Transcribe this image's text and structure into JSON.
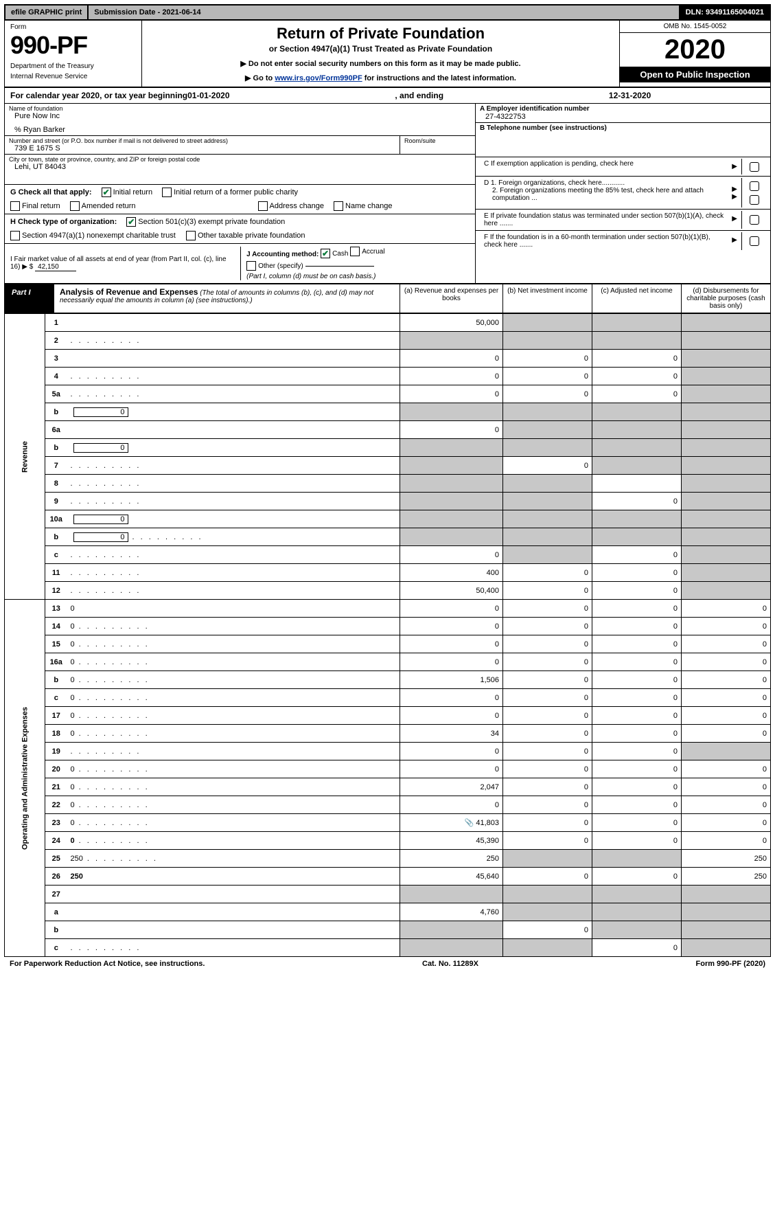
{
  "topbar": {
    "efile_label": "efile GRAPHIC print",
    "submission_label": "Submission Date - 2021-06-14",
    "dln_label": "DLN: 93491165004021"
  },
  "header": {
    "form_word": "Form",
    "form_number": "990-PF",
    "department": "Department of the Treasury",
    "irs": "Internal Revenue Service",
    "title": "Return of Private Foundation",
    "subtitle": "or Section 4947(a)(1) Trust Treated as Private Foundation",
    "instr1": "▶ Do not enter social security numbers on this form as it may be made public.",
    "instr2_prefix": "▶ Go to ",
    "instr2_link": "www.irs.gov/Form990PF",
    "instr2_suffix": " for instructions and the latest information.",
    "omb": "OMB No. 1545-0052",
    "year": "2020",
    "inspection": "Open to Public Inspection"
  },
  "calendar": {
    "prefix": "For calendar year 2020, or tax year beginning ",
    "begin": "01-01-2020",
    "mid": ", and ending ",
    "end": "12-31-2020"
  },
  "entity": {
    "name_label": "Name of foundation",
    "name": "Pure Now Inc",
    "care_of": "% Ryan Barker",
    "addr_label": "Number and street (or P.O. box number if mail is not delivered to street address)",
    "addr": "739 E 1675 S",
    "room_label": "Room/suite",
    "city_label": "City or town, state or province, country, and ZIP or foreign postal code",
    "city": "Lehi, UT  84043",
    "ein_label": "A Employer identification number",
    "ein": "27-4322753",
    "phone_label": "B Telephone number (see instructions)",
    "c_label": "C If exemption application is pending, check here",
    "d1_label": "D 1. Foreign organizations, check here............",
    "d2_label": "2. Foreign organizations meeting the 85% test, check here and attach computation ...",
    "e_label": "E  If private foundation status was terminated under section 507(b)(1)(A), check here .......",
    "f_label": "F  If the foundation is in a 60-month termination under section 507(b)(1)(B), check here ......."
  },
  "g": {
    "label": "G Check all that apply:",
    "initial": "Initial return",
    "initial_former": "Initial return of a former public charity",
    "final": "Final return",
    "amended": "Amended return",
    "addr_change": "Address change",
    "name_change": "Name change"
  },
  "h": {
    "label": "H Check type of organization:",
    "opt1": "Section 501(c)(3) exempt private foundation",
    "opt2": "Section 4947(a)(1) nonexempt charitable trust",
    "opt3": "Other taxable private foundation"
  },
  "i": {
    "label": "I Fair market value of all assets at end of year (from Part II, col. (c), line 16) ▶ $",
    "value": "42,150"
  },
  "j": {
    "label": "J Accounting method:",
    "cash": "Cash",
    "accrual": "Accrual",
    "other": "Other (specify)",
    "note": "(Part I, column (d) must be on cash basis.)"
  },
  "part1": {
    "tag": "Part I",
    "title": "Analysis of Revenue and Expenses",
    "note": "(The total of amounts in columns (b), (c), and (d) may not necessarily equal the amounts in column (a) (see instructions).)",
    "col_a": "(a)   Revenue and expenses per books",
    "col_b": "(b)  Net investment income",
    "col_c": "(c)  Adjusted net income",
    "col_d": "(d)  Disbursements for charitable purposes (cash basis only)"
  },
  "sections": {
    "revenue": "Revenue",
    "expenses": "Operating and Administrative Expenses"
  },
  "rows": [
    {
      "n": "1",
      "d": "",
      "a": "50,000",
      "b": "",
      "c": "",
      "greyB": true,
      "greyC": true,
      "greyD": true
    },
    {
      "n": "2",
      "d": "",
      "dots": true,
      "a": "",
      "b": "",
      "c": "",
      "greyA": true,
      "greyB": true,
      "greyC": true,
      "greyD": true
    },
    {
      "n": "3",
      "d": "",
      "a": "0",
      "b": "0",
      "c": "0",
      "greyD": true
    },
    {
      "n": "4",
      "d": "",
      "dots": true,
      "a": "0",
      "b": "0",
      "c": "0",
      "greyD": true
    },
    {
      "n": "5a",
      "d": "",
      "dots": true,
      "a": "0",
      "b": "0",
      "c": "0",
      "greyD": true
    },
    {
      "n": "b",
      "d": "",
      "inline": "0",
      "a": "",
      "b": "",
      "c": "",
      "greyA": true,
      "greyB": true,
      "greyC": true,
      "greyD": true
    },
    {
      "n": "6a",
      "d": "",
      "a": "0",
      "b": "",
      "c": "",
      "greyB": true,
      "greyC": true,
      "greyD": true
    },
    {
      "n": "b",
      "d": "",
      "inline": "0",
      "a": "",
      "b": "",
      "c": "",
      "greyA": true,
      "greyB": true,
      "greyC": true,
      "greyD": true
    },
    {
      "n": "7",
      "d": "",
      "dots": true,
      "a": "",
      "b": "0",
      "c": "",
      "greyA": true,
      "greyC": true,
      "greyD": true
    },
    {
      "n": "8",
      "d": "",
      "dots": true,
      "a": "",
      "b": "",
      "c": "",
      "greyA": true,
      "greyB": true,
      "greyD": true
    },
    {
      "n": "9",
      "d": "",
      "dots": true,
      "a": "",
      "b": "",
      "c": "0",
      "greyA": true,
      "greyB": true,
      "greyD": true
    },
    {
      "n": "10a",
      "d": "",
      "inline": "0",
      "a": "",
      "b": "",
      "c": "",
      "greyA": true,
      "greyB": true,
      "greyC": true,
      "greyD": true
    },
    {
      "n": "b",
      "d": "",
      "dots": true,
      "inline": "0",
      "a": "",
      "b": "",
      "c": "",
      "greyA": true,
      "greyB": true,
      "greyC": true,
      "greyD": true
    },
    {
      "n": "c",
      "d": "",
      "dots": true,
      "a": "0",
      "b": "",
      "c": "0",
      "greyB": true,
      "greyD": true
    },
    {
      "n": "11",
      "d": "",
      "dots": true,
      "a": "400",
      "b": "0",
      "c": "0",
      "greyD": true
    },
    {
      "n": "12",
      "d": "",
      "dots": true,
      "bold": true,
      "a": "50,400",
      "b": "0",
      "c": "0",
      "greyD": true
    },
    {
      "n": "13",
      "d": "0",
      "a": "0",
      "b": "0",
      "c": "0"
    },
    {
      "n": "14",
      "d": "0",
      "dots": true,
      "a": "0",
      "b": "0",
      "c": "0"
    },
    {
      "n": "15",
      "d": "0",
      "dots": true,
      "a": "0",
      "b": "0",
      "c": "0"
    },
    {
      "n": "16a",
      "d": "0",
      "dots": true,
      "a": "0",
      "b": "0",
      "c": "0"
    },
    {
      "n": "b",
      "d": "0",
      "dots": true,
      "a": "1,506",
      "b": "0",
      "c": "0"
    },
    {
      "n": "c",
      "d": "0",
      "dots": true,
      "a": "0",
      "b": "0",
      "c": "0"
    },
    {
      "n": "17",
      "d": "0",
      "dots": true,
      "a": "0",
      "b": "0",
      "c": "0"
    },
    {
      "n": "18",
      "d": "0",
      "dots": true,
      "a": "34",
      "b": "0",
      "c": "0"
    },
    {
      "n": "19",
      "d": "",
      "dots": true,
      "a": "0",
      "b": "0",
      "c": "0",
      "greyD": true
    },
    {
      "n": "20",
      "d": "0",
      "dots": true,
      "a": "0",
      "b": "0",
      "c": "0"
    },
    {
      "n": "21",
      "d": "0",
      "dots": true,
      "a": "2,047",
      "b": "0",
      "c": "0"
    },
    {
      "n": "22",
      "d": "0",
      "dots": true,
      "a": "0",
      "b": "0",
      "c": "0"
    },
    {
      "n": "23",
      "d": "0",
      "dots": true,
      "attach": true,
      "a": "41,803",
      "b": "0",
      "c": "0"
    },
    {
      "n": "24",
      "d": "0",
      "dots": true,
      "bold": true,
      "a": "45,390",
      "b": "0",
      "c": "0"
    },
    {
      "n": "25",
      "d": "250",
      "dots": true,
      "a": "250",
      "b": "",
      "c": "",
      "greyB": true,
      "greyC": true
    },
    {
      "n": "26",
      "d": "250",
      "bold": true,
      "a": "45,640",
      "b": "0",
      "c": "0"
    },
    {
      "n": "27",
      "d": "",
      "a": "",
      "b": "",
      "c": "",
      "greyA": true,
      "greyB": true,
      "greyC": true,
      "greyD": true
    },
    {
      "n": "a",
      "d": "",
      "bold": true,
      "a": "4,760",
      "b": "",
      "c": "",
      "greyB": true,
      "greyC": true,
      "greyD": true
    },
    {
      "n": "b",
      "d": "",
      "bold": true,
      "a": "",
      "b": "0",
      "c": "",
      "greyA": true,
      "greyC": true,
      "greyD": true
    },
    {
      "n": "c",
      "d": "",
      "dots": true,
      "bold": true,
      "a": "",
      "b": "",
      "c": "0",
      "greyA": true,
      "greyB": true,
      "greyD": true
    }
  ],
  "footer": {
    "left": "For Paperwork Reduction Act Notice, see instructions.",
    "mid": "Cat. No. 11289X",
    "right": "Form 990-PF (2020)"
  },
  "colors": {
    "grey": "#c8c8c8",
    "darkgrey": "#b8b8b8",
    "link": "#003399",
    "check": "#0a7a3a"
  }
}
